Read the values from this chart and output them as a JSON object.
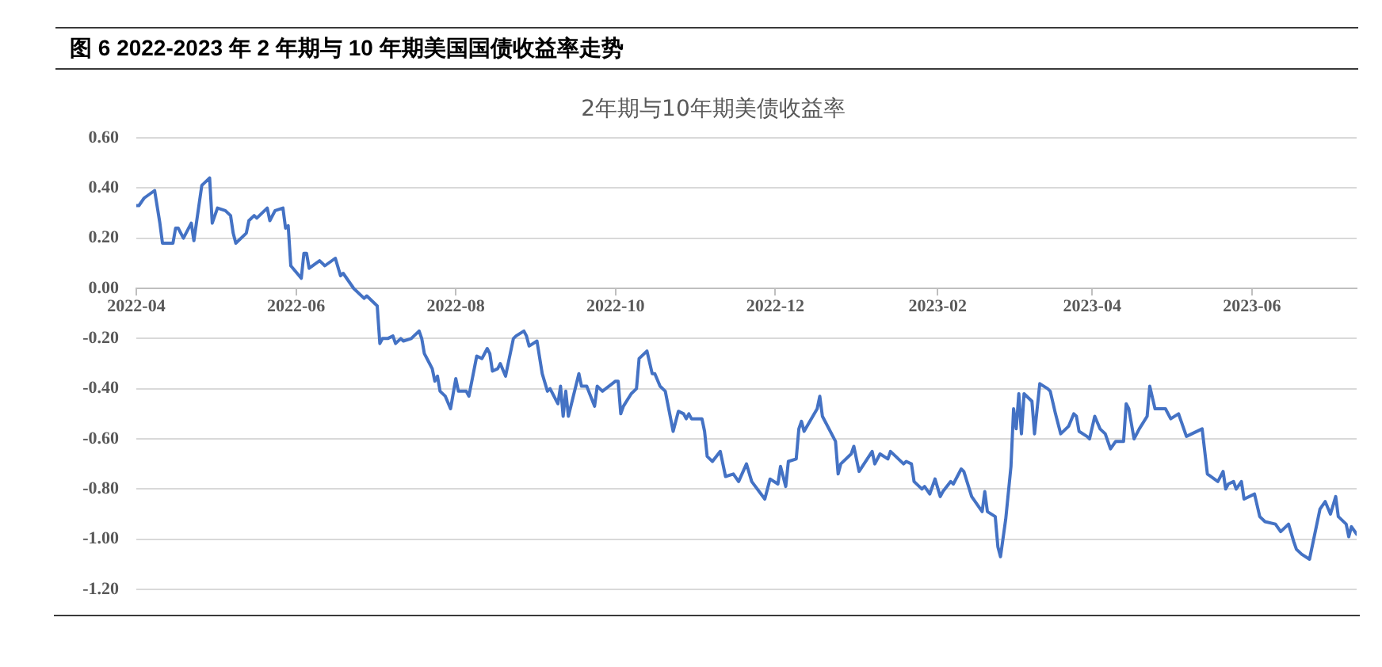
{
  "chart_data": {
    "type": "line",
    "title": "图 6 2022-2023 年 2 年期与 10 年期美国国债收益率走势",
    "subtitle": "2年期与10年期美债收益率",
    "x": [
      "2022-04-01",
      "2022-04-02",
      "2022-04-04",
      "2022-04-08",
      "2022-04-10",
      "2022-04-11",
      "2022-04-15",
      "2022-04-16",
      "2022-04-17",
      "2022-04-19",
      "2022-04-22",
      "2022-04-23",
      "2022-04-26",
      "2022-04-29",
      "2022-04-30",
      "2022-05-02",
      "2022-05-05",
      "2022-05-07",
      "2022-05-08",
      "2022-05-09",
      "2022-05-13",
      "2022-05-14",
      "2022-05-16",
      "2022-05-17",
      "2022-05-21",
      "2022-05-22",
      "2022-05-24",
      "2022-05-27",
      "2022-05-28",
      "2022-05-29",
      "2022-05-30",
      "2022-06-03",
      "2022-06-04",
      "2022-06-05",
      "2022-06-06",
      "2022-06-10",
      "2022-06-12",
      "2022-06-16",
      "2022-06-18",
      "2022-06-19",
      "2022-06-23",
      "2022-06-25",
      "2022-06-27",
      "2022-06-28",
      "2022-07-01",
      "2022-07-02",
      "2022-07-03",
      "2022-07-04",
      "2022-07-06",
      "2022-07-08",
      "2022-07-09",
      "2022-07-11",
      "2022-07-12",
      "2022-07-15",
      "2022-07-16",
      "2022-07-18",
      "2022-07-19",
      "2022-07-20",
      "2022-07-22",
      "2022-07-23",
      "2022-07-24",
      "2022-07-25",
      "2022-07-26",
      "2022-07-28",
      "2022-07-30",
      "2022-08-01",
      "2022-08-02",
      "2022-08-05",
      "2022-08-06",
      "2022-08-09",
      "2022-08-11",
      "2022-08-13",
      "2022-08-14",
      "2022-08-15",
      "2022-08-17",
      "2022-08-18",
      "2022-08-20",
      "2022-08-23",
      "2022-08-24",
      "2022-08-27",
      "2022-08-28",
      "2022-08-29",
      "2022-09-01",
      "2022-09-03",
      "2022-09-05",
      "2022-09-06",
      "2022-09-09",
      "2022-09-10",
      "2022-09-11",
      "2022-09-12",
      "2022-09-13",
      "2022-09-17",
      "2022-09-18",
      "2022-09-20",
      "2022-09-23",
      "2022-09-24",
      "2022-09-26",
      "2022-10-01",
      "2022-10-02",
      "2022-10-03",
      "2022-10-04",
      "2022-10-07",
      "2022-10-09",
      "2022-10-10",
      "2022-10-13",
      "2022-10-15",
      "2022-10-16",
      "2022-10-18",
      "2022-10-20",
      "2022-10-23",
      "2022-10-25",
      "2022-10-27",
      "2022-10-28",
      "2022-10-29",
      "2022-10-30",
      "2022-11-03",
      "2022-11-04",
      "2022-11-05",
      "2022-11-06",
      "2022-11-07",
      "2022-11-10",
      "2022-11-12",
      "2022-11-15",
      "2022-11-17",
      "2022-11-20",
      "2022-11-22",
      "2022-11-27",
      "2022-11-29",
      "2022-12-02",
      "2022-12-03",
      "2022-12-05",
      "2022-12-06",
      "2022-12-09",
      "2022-12-10",
      "2022-12-11",
      "2022-12-12",
      "2022-12-17",
      "2022-12-18",
      "2022-12-19",
      "2022-12-24",
      "2022-12-25",
      "2022-12-26",
      "2022-12-30",
      "2022-12-31",
      "2023-01-02",
      "2023-01-07",
      "2023-01-08",
      "2023-01-10",
      "2023-01-13",
      "2023-01-14",
      "2023-01-16",
      "2023-01-19",
      "2023-01-20",
      "2023-01-22",
      "2023-01-23",
      "2023-01-26",
      "2023-01-27",
      "2023-01-29",
      "2023-01-31",
      "2023-02-02",
      "2023-02-03",
      "2023-02-06",
      "2023-02-07",
      "2023-02-10",
      "2023-02-11",
      "2023-02-14",
      "2023-02-16",
      "2023-02-18",
      "2023-02-19",
      "2023-02-20",
      "2023-02-23",
      "2023-02-24",
      "2023-02-25",
      "2023-02-27",
      "2023-03-01",
      "2023-03-02",
      "2023-03-03",
      "2023-03-04",
      "2023-03-05",
      "2023-03-06",
      "2023-03-09",
      "2023-03-10",
      "2023-03-12",
      "2023-03-15",
      "2023-03-16",
      "2023-03-18",
      "2023-03-20",
      "2023-03-23",
      "2023-03-25",
      "2023-03-26",
      "2023-03-27",
      "2023-03-30",
      "2023-03-31",
      "2023-04-02",
      "2023-04-04",
      "2023-04-06",
      "2023-04-08",
      "2023-04-10",
      "2023-04-13",
      "2023-04-14",
      "2023-04-15",
      "2023-04-17",
      "2023-04-19",
      "2023-04-22",
      "2023-04-23",
      "2023-04-25",
      "2023-04-29",
      "2023-05-01",
      "2023-05-04",
      "2023-05-05",
      "2023-05-07",
      "2023-05-13",
      "2023-05-15",
      "2023-05-19",
      "2023-05-21",
      "2023-05-22",
      "2023-05-23",
      "2023-05-25",
      "2023-05-26",
      "2023-05-28",
      "2023-05-29",
      "2023-06-02",
      "2023-06-04",
      "2023-06-06",
      "2023-06-10",
      "2023-06-12",
      "2023-06-15",
      "2023-06-17",
      "2023-06-18",
      "2023-06-20",
      "2023-06-23",
      "2023-06-27",
      "2023-06-29",
      "2023-07-01",
      "2023-07-03",
      "2023-07-04",
      "2023-07-07",
      "2023-07-08",
      "2023-07-09",
      "2023-07-11"
    ],
    "values": [
      0.33,
      0.33,
      0.36,
      0.39,
      0.26,
      0.18,
      0.18,
      0.24,
      0.24,
      0.2,
      0.26,
      0.19,
      0.41,
      0.44,
      0.26,
      0.32,
      0.31,
      0.29,
      0.22,
      0.18,
      0.22,
      0.27,
      0.29,
      0.28,
      0.32,
      0.27,
      0.31,
      0.32,
      0.24,
      0.25,
      0.09,
      0.04,
      0.14,
      0.14,
      0.08,
      0.11,
      0.09,
      0.12,
      0.05,
      0.06,
      0.0,
      -0.02,
      -0.04,
      -0.03,
      -0.06,
      -0.07,
      -0.22,
      -0.2,
      -0.2,
      -0.19,
      -0.22,
      -0.2,
      -0.21,
      -0.2,
      -0.19,
      -0.17,
      -0.2,
      -0.26,
      -0.3,
      -0.32,
      -0.37,
      -0.35,
      -0.41,
      -0.43,
      -0.48,
      -0.36,
      -0.41,
      -0.41,
      -0.43,
      -0.27,
      -0.28,
      -0.24,
      -0.26,
      -0.33,
      -0.32,
      -0.3,
      -0.35,
      -0.2,
      -0.19,
      -0.17,
      -0.19,
      -0.23,
      -0.21,
      -0.34,
      -0.41,
      -0.4,
      -0.46,
      -0.39,
      -0.51,
      -0.41,
      -0.51,
      -0.34,
      -0.39,
      -0.39,
      -0.47,
      -0.39,
      -0.41,
      -0.37,
      -0.37,
      -0.5,
      -0.47,
      -0.42,
      -0.4,
      -0.28,
      -0.25,
      -0.34,
      -0.34,
      -0.39,
      -0.41,
      -0.57,
      -0.49,
      -0.5,
      -0.52,
      -0.5,
      -0.52,
      -0.52,
      -0.57,
      -0.67,
      -0.68,
      -0.69,
      -0.65,
      -0.75,
      -0.74,
      -0.77,
      -0.7,
      -0.77,
      -0.84,
      -0.76,
      -0.78,
      -0.71,
      -0.79,
      -0.69,
      -0.68,
      -0.56,
      -0.53,
      -0.57,
      -0.48,
      -0.43,
      -0.51,
      -0.61,
      -0.74,
      -0.7,
      -0.66,
      -0.63,
      -0.73,
      -0.65,
      -0.7,
      -0.66,
      -0.68,
      -0.65,
      -0.67,
      -0.7,
      -0.69,
      -0.7,
      -0.77,
      -0.8,
      -0.79,
      -0.82,
      -0.76,
      -0.83,
      -0.81,
      -0.77,
      -0.78,
      -0.72,
      -0.73,
      -0.83,
      -0.86,
      -0.89,
      -0.81,
      -0.89,
      -0.91,
      -1.03,
      -1.07,
      -0.92,
      -0.71,
      -0.48,
      -0.56,
      -0.42,
      -0.58,
      -0.42,
      -0.45,
      -0.58,
      -0.38,
      -0.4,
      -0.41,
      -0.5,
      -0.58,
      -0.55,
      -0.5,
      -0.51,
      -0.57,
      -0.59,
      -0.6,
      -0.51,
      -0.56,
      -0.58,
      -0.64,
      -0.61,
      -0.61,
      -0.46,
      -0.48,
      -0.6,
      -0.56,
      -0.51,
      -0.39,
      -0.48,
      -0.48,
      -0.52,
      -0.5,
      -0.53,
      -0.59,
      -0.56,
      -0.74,
      -0.77,
      -0.73,
      -0.8,
      -0.78,
      -0.77,
      -0.8,
      -0.77,
      -0.84,
      -0.82,
      -0.91,
      -0.93,
      -0.94,
      -0.97,
      -0.94,
      -1.01,
      -1.04,
      -1.06,
      -1.08,
      -0.88,
      -0.85,
      -0.9,
      -0.83,
      -0.91,
      -0.94,
      -0.99,
      -0.95,
      -0.98
    ],
    "color": "#4472c4",
    "xlim": [
      "2022-04-01",
      "2023-07-11"
    ],
    "xticks": [
      "2022-04",
      "2022-06",
      "2022-08",
      "2022-10",
      "2022-12",
      "2023-02",
      "2023-04",
      "2023-06"
    ],
    "ylim": [
      -1.2,
      0.6
    ],
    "yticks": [
      {
        "value": -1.2,
        "label": "-1.20"
      },
      {
        "value": -1.0,
        "label": "-1.00"
      },
      {
        "value": -0.8,
        "label": "-0.80"
      },
      {
        "value": -0.6,
        "label": "-0.60"
      },
      {
        "value": -0.4,
        "label": "-0.40"
      },
      {
        "value": -0.2,
        "label": "-0.20"
      },
      {
        "value": 0,
        "label": "0.00"
      },
      {
        "value": 0.2,
        "label": "0.20"
      },
      {
        "value": 0.4,
        "label": "0.40"
      },
      {
        "value": 0.6,
        "label": "0.60"
      }
    ],
    "grid": "y",
    "legend": false,
    "marker": "none",
    "line_style": "solid"
  }
}
